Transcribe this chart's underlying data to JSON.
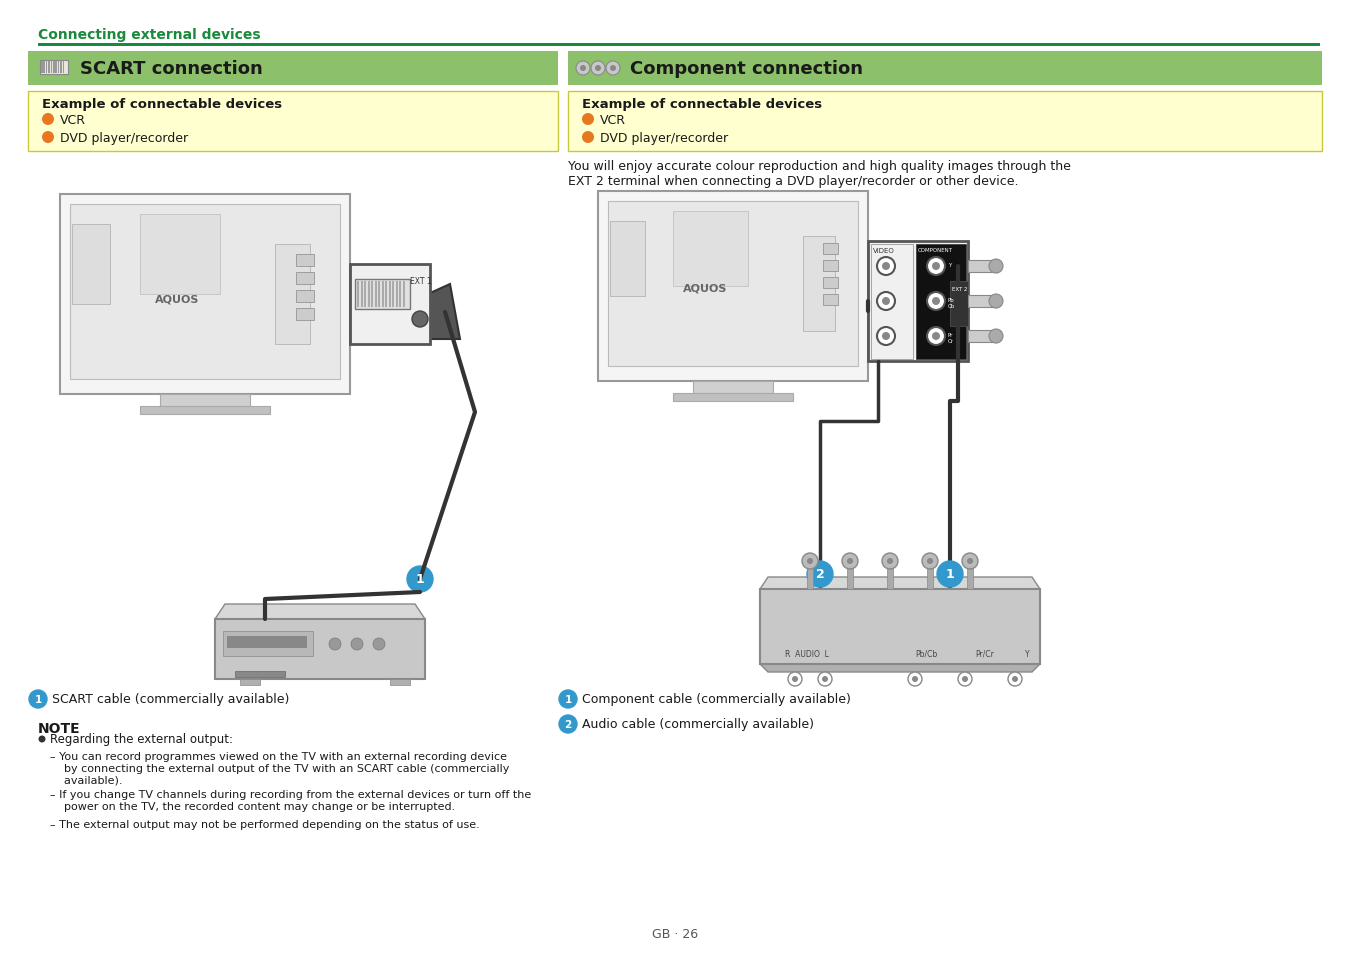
{
  "bg_color": "#ffffff",
  "header_text": "Connecting external devices",
  "header_color": "#1a8a3c",
  "header_line_color": "#1a8a3c",
  "green_bar_color": "#8dc06a",
  "section_left_title": "SCART connection",
  "section_right_title": "Component connection",
  "example_box_color": "#ffffd0",
  "example_box_border": "#c8c840",
  "example_title": "Example of connectable devices",
  "bullet_color": "#e87820",
  "bullet_items": [
    "VCR",
    "DVD player/recorder"
  ],
  "note_header": "NOTE",
  "scart_note_bullet": "SCART cable (commercially available)",
  "scart_note_body_0": "Regarding the external output:",
  "scart_note_body_1": "– You can record programmes viewed on the TV with an external recording device\n    by connecting the external output of the TV with an SCART cable (commercially\n    available).",
  "scart_note_body_2": "– If you change TV channels during recording from the external devices or turn off the\n    power on the TV, the recorded content may change or be interrupted.",
  "scart_note_body_3": "– The external output may not be performed depending on the status of use.",
  "comp_desc": "You will enjoy accurate colour reproduction and high quality images through the\nEXT 2 terminal when connecting a DVD player/recorder or other device.",
  "comp_note_1": "Component cable (commercially available)",
  "comp_note_2": "Audio cable (commercially available)",
  "page_text": "GB · 26",
  "title_font_size": 11,
  "body_font_size": 8.5,
  "blue_circle_color": "#3399cc"
}
